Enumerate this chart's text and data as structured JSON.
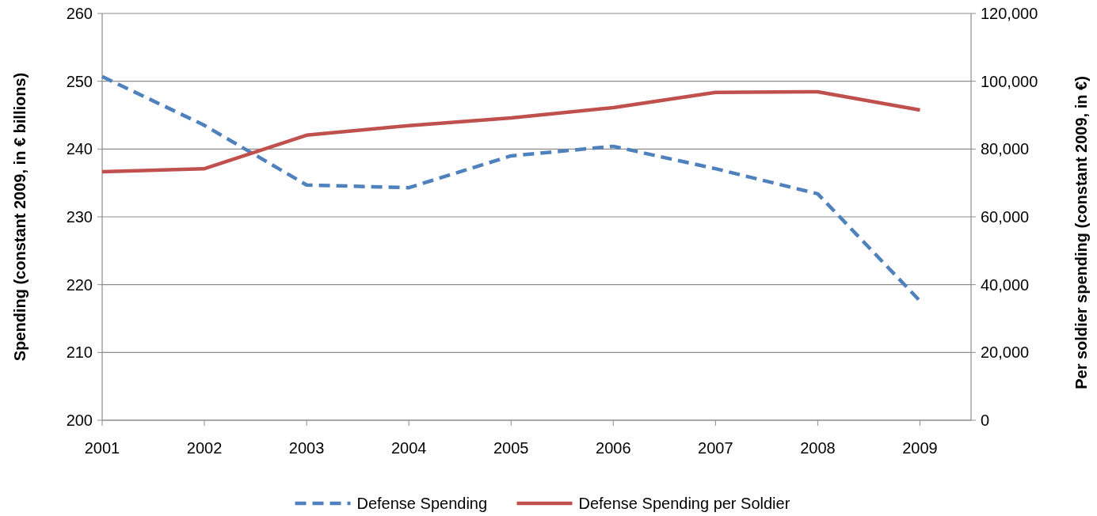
{
  "chart_data": {
    "type": "line",
    "ylabel": "Spending (constant 2009, in € billions)",
    "y2label": "Per soldier spending (constant 2009, in €)",
    "x": [
      2001,
      2002,
      2003,
      2004,
      2005,
      2006,
      2007,
      2008,
      2009
    ],
    "xlim": [
      2001,
      2009.5
    ],
    "xticks": [
      2001,
      2002,
      2003,
      2004,
      2005,
      2006,
      2007,
      2008,
      2009
    ],
    "ylim": [
      200,
      260
    ],
    "yticks": [
      200,
      210,
      220,
      230,
      240,
      250,
      260
    ],
    "y2lim": [
      0,
      120000
    ],
    "y2ticks": [
      {
        "value": 0,
        "label": "0"
      },
      {
        "value": 20000,
        "label": "20,000"
      },
      {
        "value": 40000,
        "label": "40,000"
      },
      {
        "value": 60000,
        "label": "60,000"
      },
      {
        "value": 80000,
        "label": "80,000"
      },
      {
        "value": 100000,
        "label": "100,000"
      },
      {
        "value": 120000,
        "label": "120,000"
      }
    ],
    "grid": "y",
    "legend": "bottom",
    "marker": "none",
    "series": [
      {
        "name": "Defense Spending",
        "color": "#4f81bd",
        "line_style": "dashed",
        "values": [
          250.7,
          243.5,
          234.7,
          234.3,
          239.0,
          240.4,
          237.1,
          233.4,
          217.6
        ]
      },
      {
        "name": "Defense Spending per Soldier",
        "color": "#c0504d",
        "line_style": "solid",
        "axis": "y2",
        "values": [
          73300,
          74200,
          84100,
          86900,
          89200,
          92200,
          96700,
          96900,
          91500
        ]
      }
    ]
  }
}
